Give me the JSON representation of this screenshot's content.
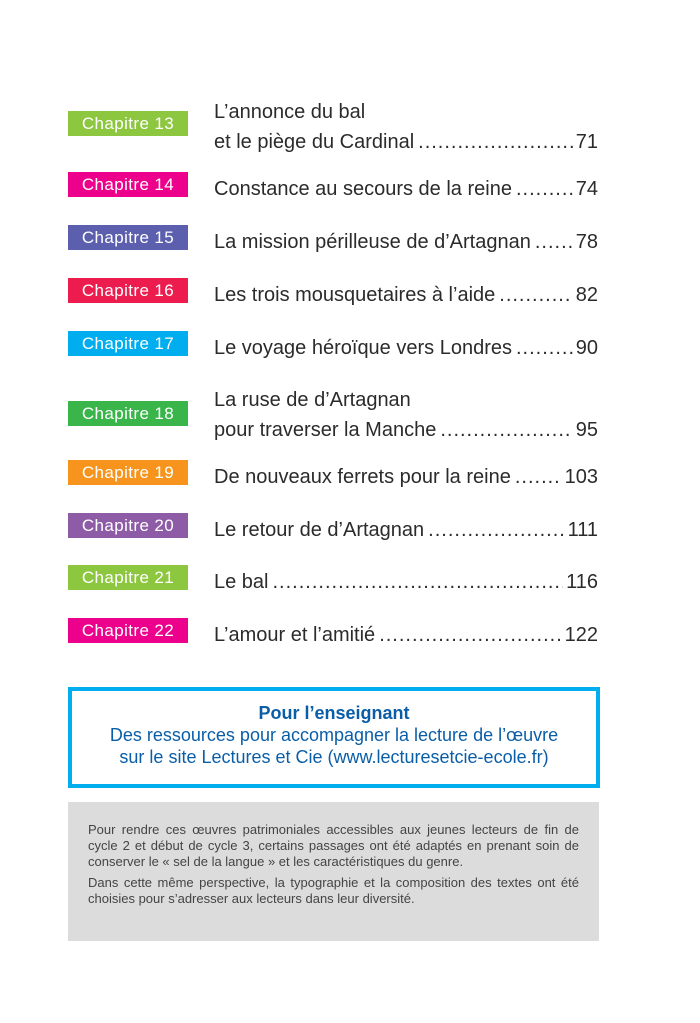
{
  "toc": {
    "entries": [
      {
        "chapter": "Chapitre 13",
        "color": "#8dc63f",
        "lines": [
          "L’annonce du bal",
          "et le piège du Cardinal"
        ],
        "page": "71"
      },
      {
        "chapter": "Chapitre 14",
        "color": "#ec008c",
        "lines": [
          "Constance au secours de la reine"
        ],
        "page": "74"
      },
      {
        "chapter": "Chapitre 15",
        "color": "#5b5fae",
        "lines": [
          "La mission périlleuse de d’Artagnan"
        ],
        "page": "78"
      },
      {
        "chapter": "Chapitre 16",
        "color": "#ed1c4f",
        "lines": [
          "Les trois mousquetaires à l’aide"
        ],
        "page": "82"
      },
      {
        "chapter": "Chapitre 17",
        "color": "#00aeef",
        "lines": [
          "Le voyage héroïque vers Londres"
        ],
        "page": "90"
      },
      {
        "chapter": "Chapitre 18",
        "color": "#39b54a",
        "lines": [
          "La ruse de d’Artagnan",
          "pour traverser la Manche"
        ],
        "page": "95"
      },
      {
        "chapter": "Chapitre 19",
        "color": "#f7941d",
        "lines": [
          "De nouveaux ferrets pour la reine"
        ],
        "page": "103"
      },
      {
        "chapter": "Chapitre 20",
        "color": "#8e5ba6",
        "lines": [
          "Le retour de d’Artagnan"
        ],
        "page": "111"
      },
      {
        "chapter": "Chapitre 21",
        "color": "#8dc63f",
        "lines": [
          "Le bal"
        ],
        "page": "116"
      },
      {
        "chapter": "Chapitre 22",
        "color": "#ec008c",
        "lines": [
          "L’amour et l’amitié"
        ],
        "page": "122"
      }
    ]
  },
  "teacher": {
    "heading": "Pour l’enseignant",
    "line1": "Des ressources pour accompagner la lecture de l’œuvre",
    "line2": "sur le site Lectures et Cie (www.lecturesetcie-ecole.fr)"
  },
  "note": {
    "paragraph1": "Pour rendre ces œuvres patrimoniales accessibles aux jeunes lecteurs de fin de cycle 2 et début de cycle 3, certains passages ont été adaptés en prenant soin de conserver le « sel de la langue » et les caractéristiques du genre.",
    "paragraph2": "Dans cette même perspective, la typographie et la composition des textes ont été choisies pour s’adresser aux lecteurs dans leur diversité."
  }
}
